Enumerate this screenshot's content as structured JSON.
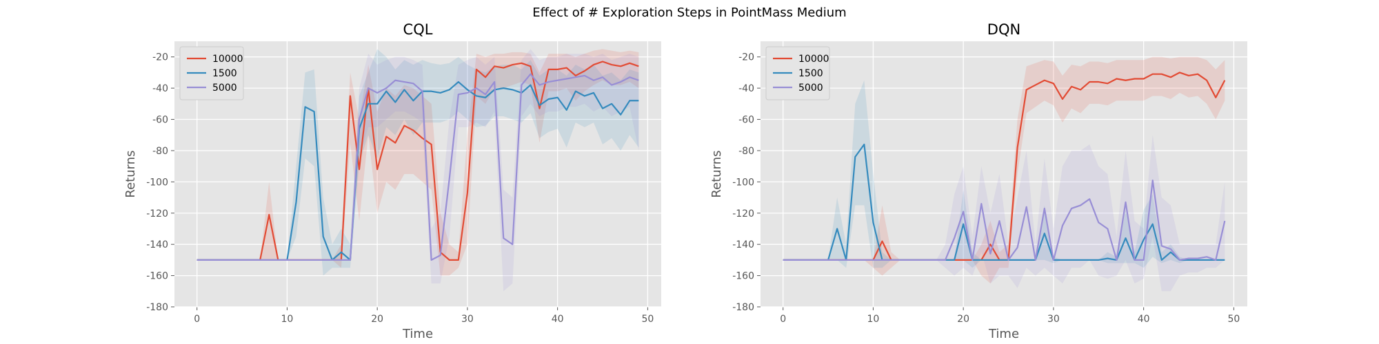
{
  "figure_title": "Effect of # Exploration Steps in PointMass Medium",
  "chart_data": [
    {
      "type": "line",
      "title": "CQL",
      "xlabel": "Time",
      "ylabel": "Returns",
      "xlim": [
        -2.5,
        51.5
      ],
      "ylim": [
        -180,
        -10
      ],
      "xticks": [
        0,
        10,
        20,
        30,
        40,
        50
      ],
      "yticks": [
        -180,
        -160,
        -140,
        -120,
        -100,
        -80,
        -60,
        -40,
        -20
      ],
      "grid": true,
      "legend_position": "top-left",
      "shaded_band": true,
      "series": [
        {
          "name": "10000",
          "color": "#E24A33",
          "values": [
            -150,
            -150,
            -150,
            -150,
            -150,
            -150,
            -150,
            -150,
            -121,
            -150,
            -150,
            -150,
            -150,
            -150,
            -150,
            -150,
            -150,
            -45,
            -92,
            -40,
            -92,
            -71,
            -75,
            -64,
            -67,
            -72,
            -76,
            -145,
            -150,
            -150,
            -107,
            -28,
            -33,
            -26,
            -27,
            -25,
            -24,
            -26,
            -53,
            -28,
            -28,
            -27,
            -32,
            -29,
            -25,
            -23,
            -25,
            -26,
            -24,
            -26
          ],
          "upper": [
            -150,
            -150,
            -150,
            -150,
            -150,
            -150,
            -150,
            -150,
            -100,
            -150,
            -150,
            -150,
            -150,
            -150,
            -150,
            -150,
            -140,
            -30,
            -60,
            -25,
            -55,
            -40,
            -45,
            -38,
            -40,
            -45,
            -50,
            -120,
            -140,
            -145,
            -70,
            -18,
            -20,
            -18,
            -18,
            -17,
            -17,
            -18,
            -30,
            -18,
            -18,
            -18,
            -20,
            -18,
            -16,
            -15,
            -16,
            -17,
            -16,
            -17
          ],
          "lower": [
            -150,
            -150,
            -150,
            -150,
            -150,
            -150,
            -150,
            -150,
            -150,
            -150,
            -150,
            -150,
            -150,
            -150,
            -150,
            -150,
            -155,
            -75,
            -125,
            -70,
            -120,
            -100,
            -105,
            -95,
            -95,
            -100,
            -105,
            -160,
            -160,
            -155,
            -140,
            -45,
            -50,
            -40,
            -40,
            -38,
            -36,
            -38,
            -75,
            -42,
            -42,
            -40,
            -48,
            -42,
            -38,
            -35,
            -38,
            -38,
            -36,
            -40
          ]
        },
        {
          "name": "1500",
          "color": "#348ABD",
          "values": [
            -150,
            -150,
            -150,
            -150,
            -150,
            -150,
            -150,
            -150,
            -150,
            -150,
            -150,
            -113,
            -52,
            -55,
            -135,
            -150,
            -145,
            -150,
            -66,
            -50,
            -50,
            -42,
            -49,
            -41,
            -48,
            -42,
            -42,
            -43,
            -41,
            -36,
            -41,
            -45,
            -46,
            -41,
            -40,
            -41,
            -43,
            -38,
            -51,
            -47,
            -46,
            -54,
            -42,
            -45,
            -43,
            -53,
            -50,
            -57,
            -48,
            -48
          ],
          "upper": [
            -150,
            -150,
            -150,
            -150,
            -150,
            -150,
            -150,
            -150,
            -150,
            -150,
            -150,
            -90,
            -30,
            -28,
            -110,
            -140,
            -130,
            -140,
            -45,
            -30,
            -15,
            -20,
            -28,
            -22,
            -25,
            -22,
            -24,
            -25,
            -24,
            -20,
            -25,
            -28,
            -30,
            -26,
            -25,
            -25,
            -28,
            -22,
            -32,
            -28,
            -28,
            -32,
            -25,
            -28,
            -25,
            -32,
            -30,
            -35,
            -28,
            -30
          ],
          "lower": [
            -150,
            -150,
            -150,
            -150,
            -150,
            -150,
            -150,
            -150,
            -150,
            -150,
            -150,
            -135,
            -85,
            -90,
            -160,
            -155,
            -155,
            -155,
            -88,
            -70,
            -85,
            -65,
            -70,
            -60,
            -70,
            -62,
            -62,
            -62,
            -60,
            -55,
            -60,
            -65,
            -64,
            -58,
            -58,
            -60,
            -62,
            -56,
            -72,
            -68,
            -66,
            -78,
            -62,
            -65,
            -62,
            -76,
            -72,
            -80,
            -70,
            -78
          ]
        },
        {
          "name": "5000",
          "color": "#988ED5",
          "values": [
            -150,
            -150,
            -150,
            -150,
            -150,
            -150,
            -150,
            -150,
            -150,
            -150,
            -150,
            -150,
            -150,
            -150,
            -150,
            -150,
            -150,
            -150,
            -60,
            -40,
            -43,
            -40,
            -35,
            -36,
            -37,
            -42,
            -150,
            -147,
            -98,
            -44,
            -43,
            -40,
            -44,
            -36,
            -136,
            -140,
            -38,
            -31,
            -38,
            -36,
            -35,
            -34,
            -33,
            -32,
            -35,
            -33,
            -38,
            -36,
            -33,
            -35
          ],
          "upper": [
            -150,
            -150,
            -150,
            -150,
            -150,
            -150,
            -150,
            -150,
            -150,
            -150,
            -150,
            -150,
            -150,
            -150,
            -150,
            -150,
            -150,
            -150,
            -40,
            -18,
            -25,
            -22,
            -20,
            -20,
            -22,
            -25,
            -130,
            -120,
            -60,
            -25,
            -22,
            -20,
            -25,
            -20,
            -105,
            -110,
            -22,
            -15,
            -22,
            -20,
            -20,
            -18,
            -18,
            -18,
            -20,
            -18,
            -22,
            -20,
            -18,
            -20
          ],
          "lower": [
            -150,
            -150,
            -150,
            -150,
            -150,
            -150,
            -150,
            -150,
            -150,
            -150,
            -150,
            -150,
            -150,
            -150,
            -150,
            -150,
            -150,
            -150,
            -85,
            -65,
            -65,
            -60,
            -55,
            -55,
            -58,
            -62,
            -165,
            -165,
            -135,
            -65,
            -65,
            -62,
            -65,
            -55,
            -170,
            -165,
            -58,
            -50,
            -58,
            -55,
            -55,
            -52,
            -52,
            -50,
            -55,
            -52,
            -58,
            -55,
            -52,
            -80
          ]
        }
      ]
    },
    {
      "type": "line",
      "title": "DQN",
      "xlabel": "Time",
      "ylabel": "Returns",
      "xlim": [
        -2.5,
        51.5
      ],
      "ylim": [
        -180,
        -10
      ],
      "xticks": [
        0,
        10,
        20,
        30,
        40,
        50
      ],
      "yticks": [
        -180,
        -160,
        -140,
        -120,
        -100,
        -80,
        -60,
        -40,
        -20
      ],
      "grid": true,
      "legend_position": "top-left",
      "shaded_band": true,
      "series": [
        {
          "name": "10000",
          "color": "#E24A33",
          "values": [
            -150,
            -150,
            -150,
            -150,
            -150,
            -150,
            -150,
            -150,
            -150,
            -150,
            -150,
            -138,
            -150,
            -150,
            -150,
            -150,
            -150,
            -150,
            -150,
            -150,
            -150,
            -150,
            -150,
            -140,
            -150,
            -150,
            -78,
            -41,
            -38,
            -35,
            -37,
            -47,
            -39,
            -41,
            -36,
            -36,
            -37,
            -34,
            -35,
            -34,
            -34,
            -31,
            -31,
            -33,
            -30,
            -32,
            -31,
            -35,
            -46,
            -35
          ],
          "upper": [
            -150,
            -150,
            -150,
            -150,
            -150,
            -150,
            -150,
            -150,
            -150,
            -150,
            -150,
            -115,
            -145,
            -150,
            -150,
            -150,
            -150,
            -150,
            -150,
            -150,
            -150,
            -150,
            -140,
            -125,
            -145,
            -140,
            -60,
            -26,
            -24,
            -22,
            -23,
            -32,
            -25,
            -26,
            -23,
            -23,
            -24,
            -22,
            -22,
            -22,
            -22,
            -20,
            -20,
            -21,
            -20,
            -20,
            -20,
            -22,
            -28,
            -22
          ],
          "lower": [
            -150,
            -150,
            -150,
            -150,
            -150,
            -150,
            -150,
            -150,
            -150,
            -150,
            -155,
            -160,
            -155,
            -150,
            -150,
            -150,
            -150,
            -150,
            -150,
            -150,
            -150,
            -150,
            -160,
            -165,
            -155,
            -155,
            -95,
            -56,
            -52,
            -48,
            -51,
            -62,
            -53,
            -56,
            -50,
            -50,
            -51,
            -48,
            -48,
            -48,
            -48,
            -45,
            -45,
            -47,
            -43,
            -46,
            -45,
            -50,
            -60,
            -48
          ]
        },
        {
          "name": "1500",
          "color": "#348ABD",
          "values": [
            -150,
            -150,
            -150,
            -150,
            -150,
            -150,
            -130,
            -150,
            -84,
            -76,
            -126,
            -150,
            -150,
            -150,
            -150,
            -150,
            -150,
            -150,
            -150,
            -150,
            -127,
            -150,
            -150,
            -150,
            -150,
            -150,
            -150,
            -150,
            -150,
            -133,
            -150,
            -150,
            -150,
            -150,
            -150,
            -150,
            -149,
            -150,
            -136,
            -150,
            -137,
            -127,
            -150,
            -145,
            -150,
            -150,
            -150,
            -150,
            -150,
            -150
          ],
          "upper": [
            -150,
            -150,
            -150,
            -150,
            -150,
            -150,
            -110,
            -140,
            -50,
            -35,
            -95,
            -145,
            -150,
            -150,
            -150,
            -150,
            -150,
            -150,
            -150,
            -150,
            -105,
            -145,
            -150,
            -150,
            -150,
            -150,
            -150,
            -150,
            -150,
            -115,
            -148,
            -150,
            -150,
            -150,
            -150,
            -150,
            -145,
            -148,
            -118,
            -145,
            -118,
            -108,
            -145,
            -140,
            -148,
            -150,
            -150,
            -150,
            -150,
            -150
          ],
          "lower": [
            -150,
            -150,
            -150,
            -150,
            -150,
            -150,
            -150,
            -155,
            -115,
            -115,
            -155,
            -155,
            -150,
            -150,
            -150,
            -150,
            -150,
            -150,
            -150,
            -150,
            -150,
            -155,
            -150,
            -150,
            -150,
            -150,
            -150,
            -150,
            -150,
            -150,
            -152,
            -150,
            -150,
            -150,
            -150,
            -150,
            -152,
            -152,
            -152,
            -152,
            -155,
            -148,
            -152,
            -150,
            -152,
            -150,
            -150,
            -150,
            -150,
            -150
          ]
        },
        {
          "name": "5000",
          "color": "#988ED5",
          "values": [
            -150,
            -150,
            -150,
            -150,
            -150,
            -150,
            -150,
            -150,
            -150,
            -150,
            -150,
            -150,
            -150,
            -150,
            -150,
            -150,
            -150,
            -150,
            -150,
            -136,
            -119,
            -150,
            -114,
            -146,
            -125,
            -150,
            -142,
            -116,
            -150,
            -117,
            -150,
            -128,
            -117,
            -115,
            -111,
            -126,
            -130,
            -150,
            -113,
            -150,
            -150,
            -99,
            -141,
            -143,
            -150,
            -149,
            -149,
            -148,
            -150,
            -125
          ],
          "upper": [
            -150,
            -150,
            -150,
            -150,
            -150,
            -150,
            -150,
            -150,
            -150,
            -150,
            -150,
            -150,
            -150,
            -150,
            -150,
            -150,
            -150,
            -150,
            -140,
            -108,
            -90,
            -135,
            -90,
            -120,
            -95,
            -140,
            -110,
            -80,
            -140,
            -85,
            -130,
            -90,
            -80,
            -80,
            -76,
            -90,
            -95,
            -135,
            -80,
            -125,
            -130,
            -70,
            -110,
            -115,
            -140,
            -140,
            -140,
            -140,
            -140,
            -100
          ],
          "lower": [
            -150,
            -150,
            -150,
            -150,
            -150,
            -150,
            -150,
            -150,
            -150,
            -150,
            -150,
            -150,
            -150,
            -150,
            -150,
            -150,
            -150,
            -150,
            -155,
            -160,
            -155,
            -160,
            -145,
            -165,
            -160,
            -160,
            -168,
            -155,
            -160,
            -155,
            -160,
            -165,
            -155,
            -155,
            -150,
            -160,
            -162,
            -160,
            -150,
            -165,
            -162,
            -135,
            -170,
            -170,
            -160,
            -158,
            -158,
            -155,
            -155,
            -150
          ]
        }
      ]
    }
  ]
}
